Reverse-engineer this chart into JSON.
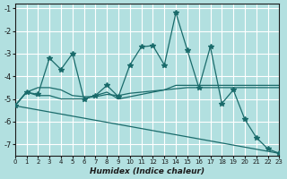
{
  "xlabel": "Humidex (Indice chaleur)",
  "ylabel": "",
  "xlim": [
    0,
    23
  ],
  "ylim": [
    -7.5,
    -0.8
  ],
  "background_color": "#b2e0e0",
  "grid_color": "#ffffff",
  "line_color": "#1a6b6b",
  "series": [
    {
      "x": [
        0,
        1,
        2,
        3,
        4,
        5,
        6,
        7,
        8,
        9,
        10,
        11,
        12,
        13,
        14,
        15,
        16,
        17,
        18,
        19,
        20,
        21,
        22,
        23
      ],
      "y": [
        -5.3,
        -4.7,
        -4.8,
        -3.2,
        -3.7,
        -3.0,
        -5.0,
        -4.85,
        -4.4,
        -4.9,
        -3.5,
        -2.7,
        -2.65,
        -3.5,
        -1.2,
        -2.85,
        -4.5,
        -2.7,
        -5.2,
        -4.6,
        -5.9,
        -6.7,
        -7.2,
        -7.4
      ],
      "marker": true
    },
    {
      "x": [
        0,
        1,
        2,
        3,
        4,
        5,
        6,
        7,
        8,
        9,
        10,
        11,
        12,
        13,
        14,
        15,
        16,
        17,
        18,
        19,
        20,
        21,
        22,
        23
      ],
      "y": [
        -5.3,
        -4.7,
        -4.5,
        -4.5,
        -4.6,
        -4.85,
        -4.9,
        -4.9,
        -4.8,
        -4.85,
        -4.75,
        -4.7,
        -4.65,
        -4.6,
        -4.55,
        -4.5,
        -4.5,
        -4.5,
        -4.5,
        -4.5,
        -4.5,
        -4.5,
        -4.5,
        -4.5
      ],
      "marker": false
    },
    {
      "x": [
        0,
        1,
        2,
        3,
        4,
        5,
        6,
        7,
        8,
        9,
        10,
        11,
        12,
        13,
        14,
        15,
        16,
        17,
        18,
        19,
        20,
        21,
        22,
        23
      ],
      "y": [
        -5.3,
        -4.7,
        -4.85,
        -4.85,
        -5.0,
        -5.0,
        -5.0,
        -4.85,
        -4.7,
        -5.0,
        -4.9,
        -4.8,
        -4.7,
        -4.6,
        -4.4,
        -4.4,
        -4.4,
        -4.4,
        -4.4,
        -4.4,
        -4.4,
        -4.4,
        -4.4,
        -4.4
      ],
      "marker": false
    },
    {
      "x": [
        0,
        23
      ],
      "y": [
        -5.3,
        -7.4
      ],
      "marker": false
    }
  ],
  "yticks": [
    -7,
    -6,
    -5,
    -4,
    -3,
    -2,
    -1
  ],
  "xticks": [
    0,
    1,
    2,
    3,
    4,
    5,
    6,
    7,
    8,
    9,
    10,
    11,
    12,
    13,
    14,
    15,
    16,
    17,
    18,
    19,
    20,
    21,
    22,
    23
  ]
}
